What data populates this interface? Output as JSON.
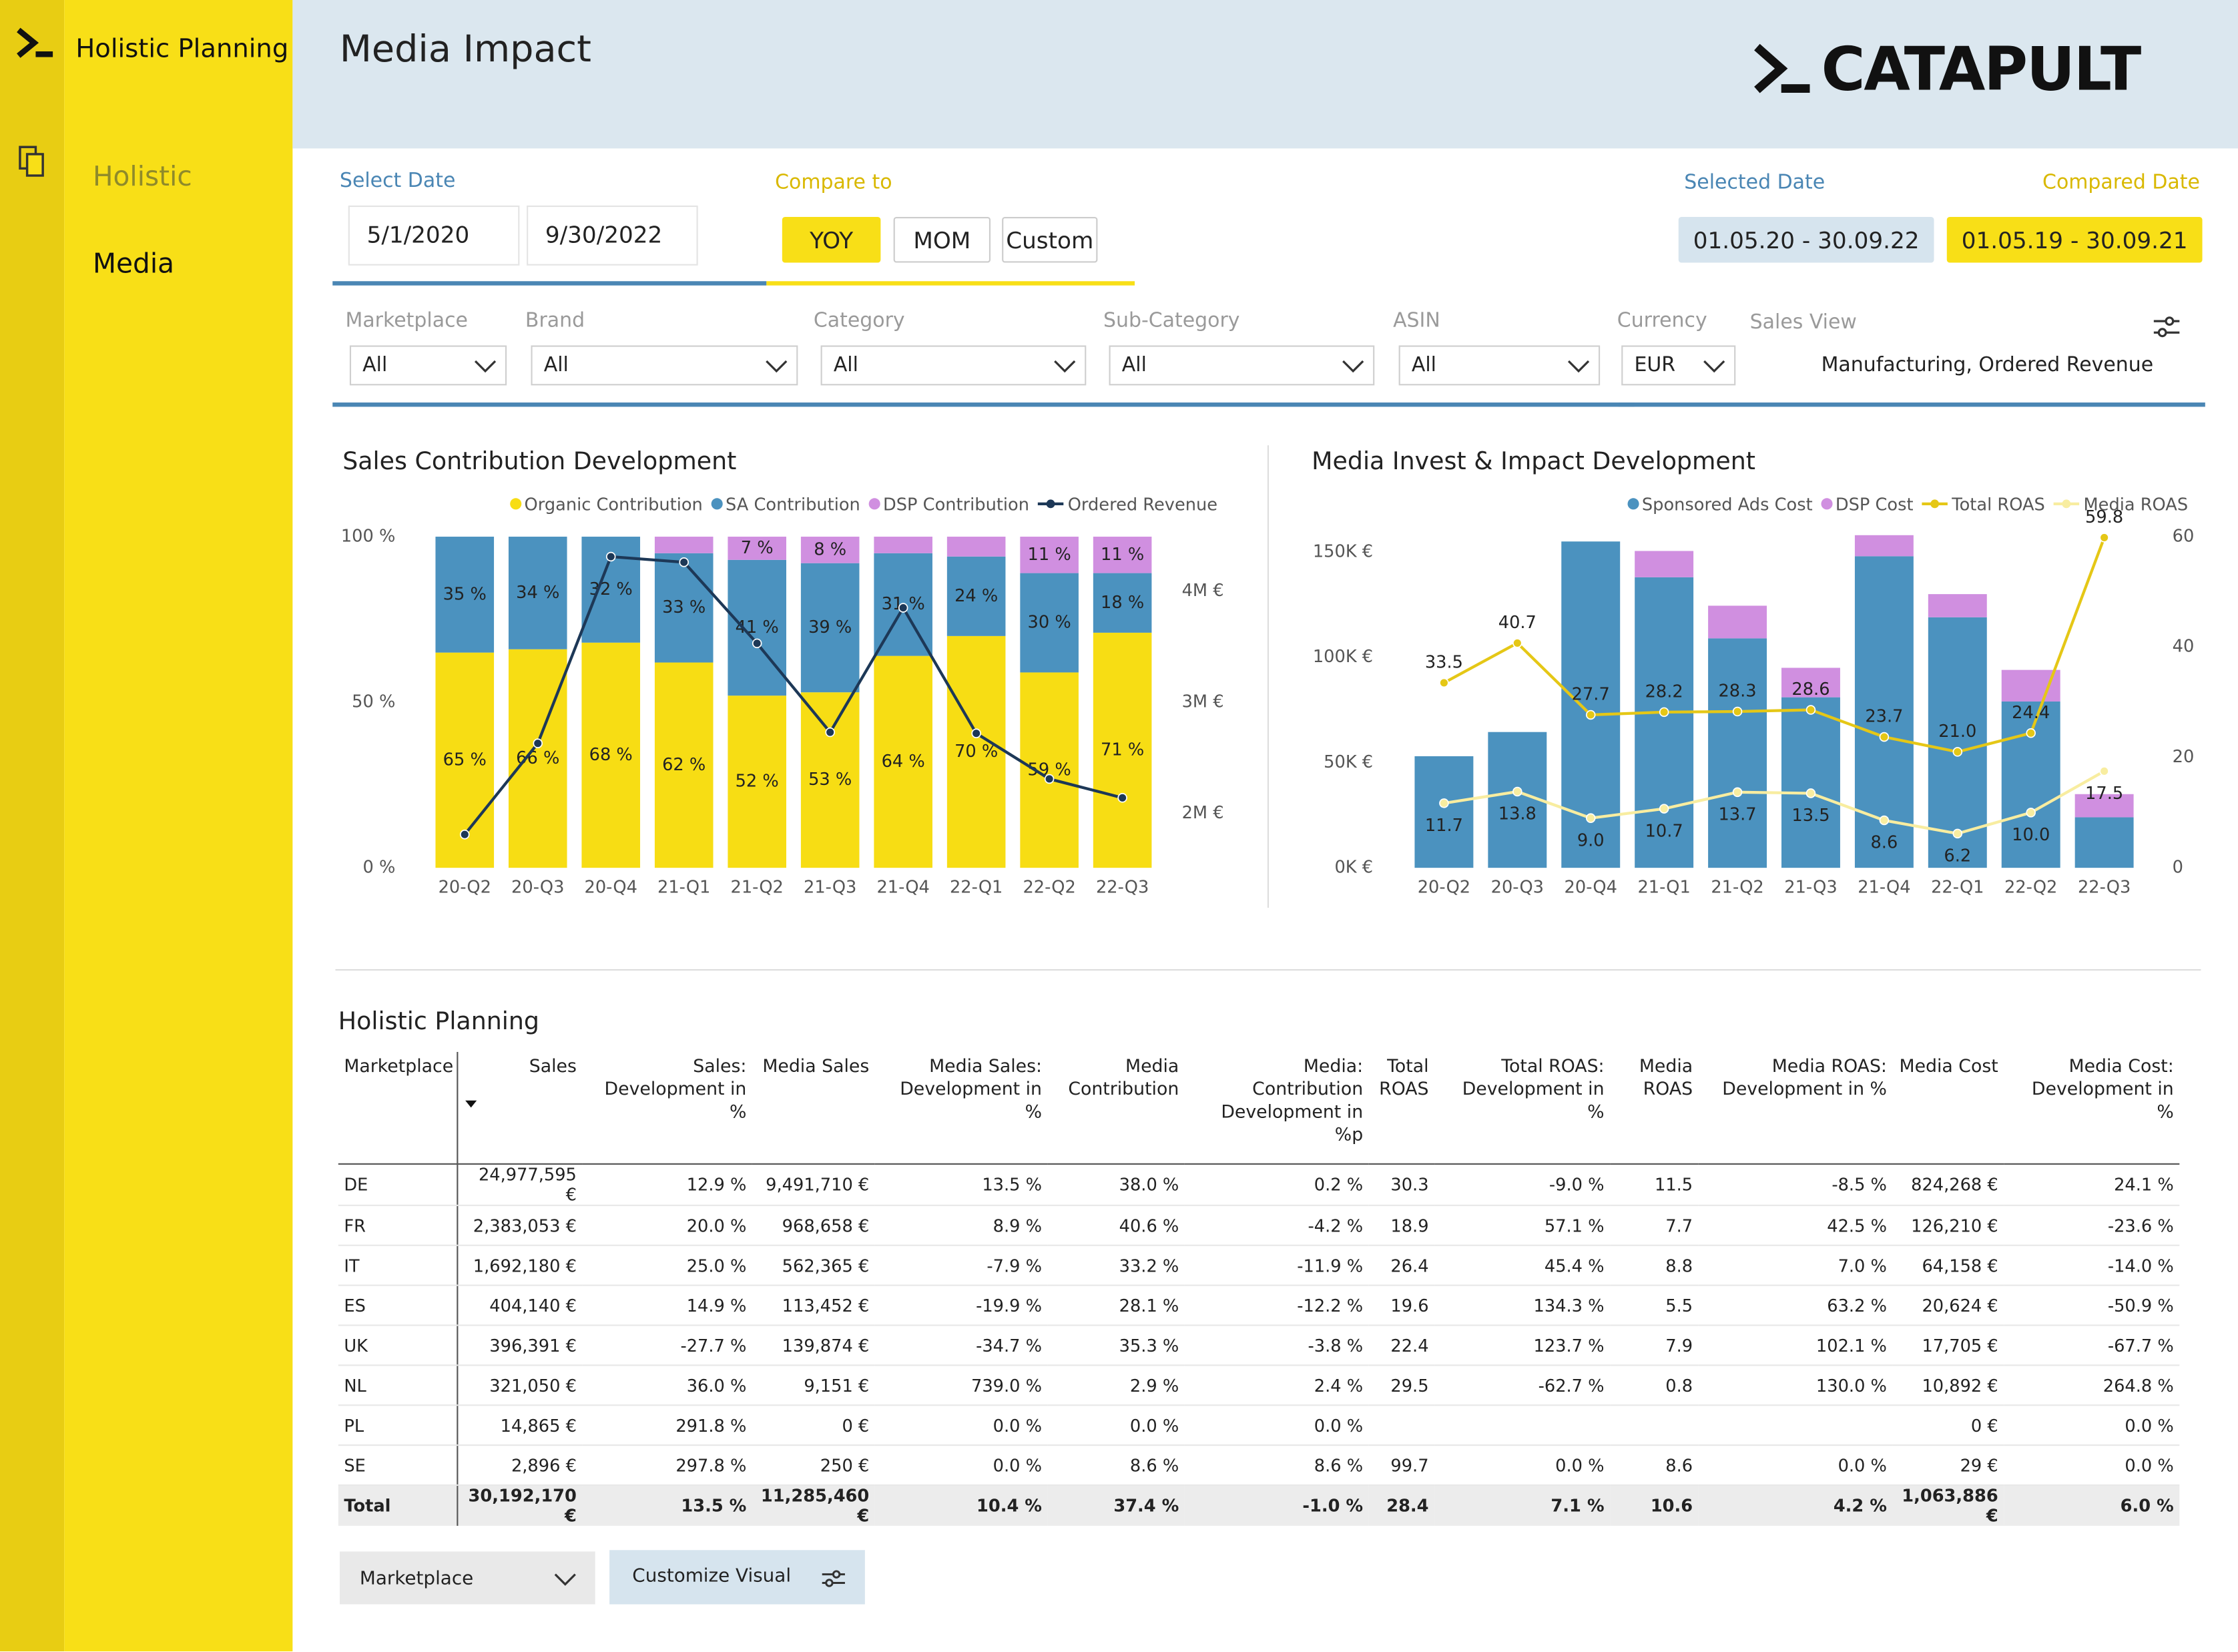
{
  "sidebar": {
    "title": "Holistic Planning",
    "items": [
      "Holistic",
      "Media"
    ]
  },
  "header": {
    "title": "Media Impact",
    "logo": "CATAPULT"
  },
  "date_panel": {
    "select_label": "Select Date",
    "start": "5/1/2020",
    "end": "9/30/2022",
    "compare_label": "Compare to",
    "compare_options": [
      "YOY",
      "MOM",
      "Custom"
    ],
    "selected_label": "Selected Date",
    "selected_range": "01.05.20 - 30.09.22",
    "compared_label": "Compared Date",
    "compared_range": "01.05.19 - 30.09.21"
  },
  "filters": [
    {
      "label": "Marketplace",
      "value": "All"
    },
    {
      "label": "Brand",
      "value": "All"
    },
    {
      "label": "Category",
      "value": "All"
    },
    {
      "label": "Sub-Category",
      "value": "All"
    },
    {
      "label": "ASIN",
      "value": "All"
    },
    {
      "label": "Currency",
      "value": "EUR"
    }
  ],
  "sales_view": {
    "label": "Sales View",
    "value": "Manufacturing, Ordered Revenue"
  },
  "chart_data": [
    {
      "type": "bar",
      "stacked": true,
      "title": "Sales Contribution Development",
      "categories": [
        "20-Q2",
        "20-Q3",
        "20-Q4",
        "21-Q1",
        "21-Q2",
        "21-Q3",
        "21-Q4",
        "22-Q1",
        "22-Q2",
        "22-Q3"
      ],
      "series": [
        {
          "name": "Organic Contribution",
          "color": "#f7dd14",
          "values": [
            65,
            66,
            68,
            62,
            52,
            53,
            64,
            70,
            59,
            71
          ],
          "value_labels": [
            "65 %",
            "66 %",
            "68 %",
            "62 %",
            "52 %",
            "53 %",
            "64 %",
            "70 %",
            "59 %",
            "71 %"
          ]
        },
        {
          "name": "SA Contribution",
          "color": "#4b92bf",
          "values": [
            35,
            34,
            32,
            33,
            41,
            39,
            31,
            24,
            30,
            18
          ],
          "value_labels": [
            "35 %",
            "34 %",
            "32 %",
            "33 %",
            "41 %",
            "39 %",
            "31 %",
            "24 %",
            "30 %",
            "18 %"
          ]
        },
        {
          "name": "DSP Contribution",
          "color": "#d08fe0",
          "values": [
            0,
            0,
            0,
            5,
            7,
            8,
            5,
            6,
            11,
            11
          ],
          "value_labels": [
            null,
            null,
            null,
            null,
            "7 %",
            "8 %",
            null,
            null,
            "11 %",
            "11 %"
          ]
        },
        {
          "name": "Ordered Revenue",
          "type": "line",
          "axis": "y2",
          "color": "#1d3857",
          "values": [
            1810000,
            2630000,
            4310000,
            4260000,
            3530000,
            2730000,
            3850000,
            2720000,
            2310000,
            2140000
          ]
        }
      ],
      "ylim": [
        0,
        100
      ],
      "yticks": [
        {
          "value": 0,
          "label": "0 %"
        },
        {
          "value": 50,
          "label": "50 %"
        },
        {
          "value": 100,
          "label": "100 %"
        }
      ],
      "y2lim": [
        1510000,
        4490000
      ],
      "y2ticks": [
        {
          "value": 2000000,
          "label": "2M €"
        },
        {
          "value": 3000000,
          "label": "3M €"
        },
        {
          "value": 4000000,
          "label": "4M €"
        }
      ],
      "grid": false
    },
    {
      "type": "bar",
      "stacked": true,
      "title": "Media Invest & Impact Development",
      "categories": [
        "20-Q2",
        "20-Q3",
        "20-Q4",
        "21-Q1",
        "21-Q2",
        "21-Q3",
        "21-Q4",
        "22-Q1",
        "22-Q2",
        "22-Q3"
      ],
      "series": [
        {
          "name": "Sponsored Ads Cost",
          "color": "#4b92bf",
          "values": [
            53000,
            64500,
            155000,
            138000,
            109000,
            81000,
            148000,
            119000,
            79000,
            24000
          ]
        },
        {
          "name": "DSP Cost",
          "color": "#d08fe0",
          "values": [
            0,
            0,
            0,
            12500,
            15500,
            14000,
            10000,
            11000,
            15000,
            11000
          ]
        },
        {
          "name": "Total ROAS",
          "type": "line",
          "axis": "y2",
          "color": "#e5c716",
          "values": [
            33.5,
            40.7,
            27.7,
            28.2,
            28.3,
            28.6,
            23.7,
            21.0,
            24.4,
            59.8
          ],
          "value_labels": [
            "33.5",
            "40.7",
            "27.7",
            "28.2",
            "28.3",
            "28.6",
            "23.7",
            "21.0",
            "24.4",
            "59.8"
          ]
        },
        {
          "name": "Media ROAS",
          "type": "line",
          "axis": "y2",
          "color": "#f8eda0",
          "values": [
            11.7,
            13.8,
            9.0,
            10.7,
            13.7,
            13.5,
            8.6,
            6.2,
            10.0,
            17.5
          ],
          "value_labels": [
            "11.7",
            "13.8",
            "9.0",
            "10.7",
            "13.7",
            "13.5",
            "8.6",
            "6.2",
            "10.0",
            "17.5"
          ]
        }
      ],
      "ylim": [
        0,
        160000
      ],
      "yticks": [
        {
          "value": 0,
          "label": "0K €"
        },
        {
          "value": 50000,
          "label": "50K €"
        },
        {
          "value": 100000,
          "label": "100K €"
        },
        {
          "value": 150000,
          "label": "150K €"
        }
      ],
      "y2lim": [
        0,
        61
      ],
      "y2ticks": [
        0,
        20,
        40,
        60
      ],
      "grid": false
    }
  ],
  "table": {
    "title": "Holistic Planning",
    "columns": [
      "Marketplace",
      "Sales",
      "Sales: Development in %",
      "Media Sales",
      "Media Sales: Development in %",
      "Media Contribution",
      "Media: Contribution Development in %p",
      "Total ROAS",
      "Total ROAS: Development in %",
      "Media ROAS",
      "Media ROAS: Development in %",
      "Media Cost",
      "Media Cost: Development in %"
    ],
    "rows": [
      [
        "DE",
        "24,977,595 €",
        "12.9 %",
        "9,491,710 €",
        "13.5 %",
        "38.0 %",
        "0.2 %",
        "30.3",
        "-9.0 %",
        "11.5",
        "-8.5 %",
        "824,268 €",
        "24.1 %"
      ],
      [
        "FR",
        "2,383,053 €",
        "20.0 %",
        "968,658 €",
        "8.9 %",
        "40.6 %",
        "-4.2 %",
        "18.9",
        "57.1 %",
        "7.7",
        "42.5 %",
        "126,210 €",
        "-23.6 %"
      ],
      [
        "IT",
        "1,692,180 €",
        "25.0 %",
        "562,365 €",
        "-7.9 %",
        "33.2 %",
        "-11.9 %",
        "26.4",
        "45.4 %",
        "8.8",
        "7.0 %",
        "64,158 €",
        "-14.0 %"
      ],
      [
        "ES",
        "404,140 €",
        "14.9 %",
        "113,452 €",
        "-19.9 %",
        "28.1 %",
        "-12.2 %",
        "19.6",
        "134.3 %",
        "5.5",
        "63.2 %",
        "20,624 €",
        "-50.9 %"
      ],
      [
        "UK",
        "396,391 €",
        "-27.7 %",
        "139,874 €",
        "-34.7 %",
        "35.3 %",
        "-3.8 %",
        "22.4",
        "123.7 %",
        "7.9",
        "102.1 %",
        "17,705 €",
        "-67.7 %"
      ],
      [
        "NL",
        "321,050 €",
        "36.0 %",
        "9,151 €",
        "739.0 %",
        "2.9 %",
        "2.4 %",
        "29.5",
        "-62.7 %",
        "0.8",
        "130.0 %",
        "10,892 €",
        "264.8 %"
      ],
      [
        "PL",
        "14,865 €",
        "291.8 %",
        "0 €",
        "0.0 %",
        "0.0 %",
        "0.0 %",
        null,
        null,
        null,
        null,
        "0 €",
        "0.0 %"
      ],
      [
        "SE",
        "2,896 €",
        "297.8 %",
        "250 €",
        "0.0 %",
        "8.6 %",
        "8.6 %",
        "99.7",
        "0.0 %",
        "8.6",
        "0.0 %",
        "29 €",
        "0.0 %"
      ]
    ],
    "total": [
      "Total",
      "30,192,170 €",
      "13.5 %",
      "11,285,460 €",
      "10.4 %",
      "37.4 %",
      "-1.0 %",
      "28.4",
      "7.1 %",
      "10.6",
      "4.2 %",
      "1,063,886 €",
      "6.0 %"
    ]
  },
  "footer": {
    "dropdown": "Marketplace",
    "button": "Customize Visual"
  }
}
